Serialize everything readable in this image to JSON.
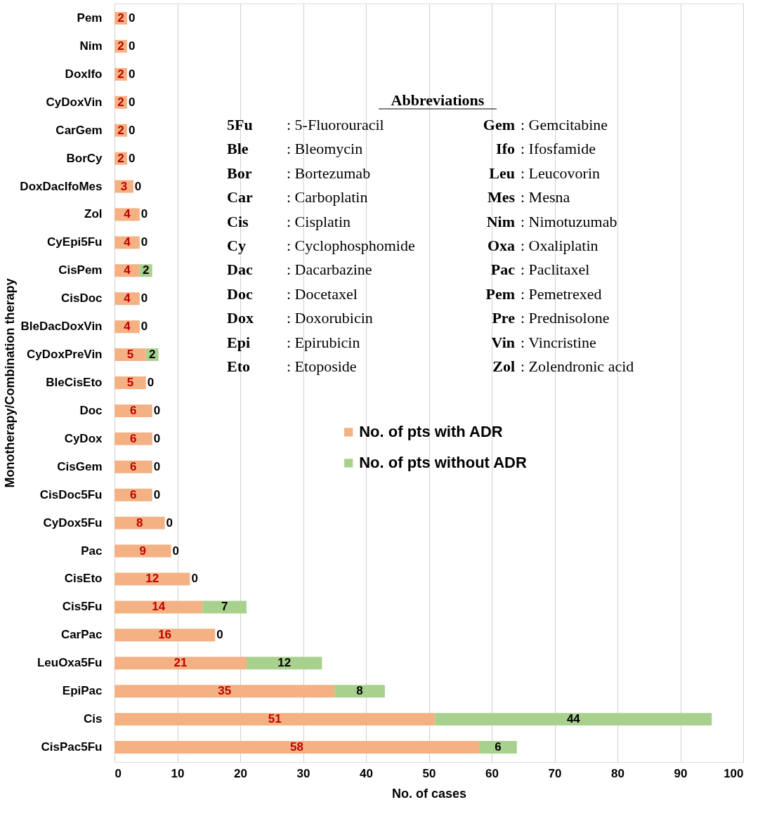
{
  "chart_data": {
    "type": "bar",
    "orientation": "horizontal",
    "stacked": true,
    "categories": [
      "Pem",
      "Nim",
      "DoxIfo",
      "CyDoxVin",
      "CarGem",
      "BorCy",
      "DoxDacIfoMes",
      "Zol",
      "CyEpi5Fu",
      "CisPem",
      "CisDoc",
      "BleDacDoxVin",
      "CyDoxPreVin",
      "BleCisEto",
      "Doc",
      "CyDox",
      "CisGem",
      "CisDoc5Fu",
      "CyDox5Fu",
      "Pac",
      "CisEto",
      "Cis5Fu",
      "CarPac",
      "LeuOxa5Fu",
      "EpiPac",
      "Cis",
      "CisPac5Fu"
    ],
    "series": [
      {
        "name": "No. of pts with ADR",
        "color": "#f4b183",
        "values": [
          2,
          2,
          2,
          2,
          2,
          2,
          3,
          4,
          4,
          4,
          4,
          4,
          5,
          5,
          6,
          6,
          6,
          6,
          8,
          9,
          12,
          14,
          16,
          21,
          35,
          51,
          58
        ]
      },
      {
        "name": "No. of pts without ADR",
        "color": "#a9d18e",
        "values": [
          0,
          0,
          0,
          0,
          0,
          0,
          0,
          0,
          0,
          2,
          0,
          0,
          2,
          0,
          0,
          0,
          0,
          0,
          0,
          0,
          0,
          7,
          0,
          12,
          8,
          44,
          6
        ]
      }
    ],
    "xlabel": "No. of cases",
    "ylabel": "Monotherapy/Combination therapy",
    "xlim": [
      0,
      100
    ],
    "xticks": [
      0,
      10,
      20,
      30,
      40,
      50,
      60,
      70,
      80,
      90,
      100
    ],
    "grid": "x",
    "legend": "center",
    "data_labels": true,
    "annotations": [
      "Abbreviations",
      "5Fu : 5-Fluorouracil",
      "Ble : Bleomycin",
      "Bor : Bortezumab",
      "Car : Carboplatin",
      "Cis : Cisplatin",
      "Cy : Cyclophosphomide",
      "Dac : Dacarbazine",
      "Doc : Docetaxel",
      "Dox : Doxorubicin",
      "Epi : Epirubicin",
      "Eto : Etoposide",
      "Gem : Gemcitabine",
      "Ifo : Ifosfamide",
      "Leu : Leucovorin",
      "Mes : Mesna",
      "Nim : Nimotuzumab",
      "Oxa : Oxaliplatin",
      "Pac : Paclitaxel",
      "Pem : Pemetrexed",
      "Pre : Prednisolone",
      "Vin : Vincristine",
      "Zol : Zolendronic acid"
    ]
  }
}
